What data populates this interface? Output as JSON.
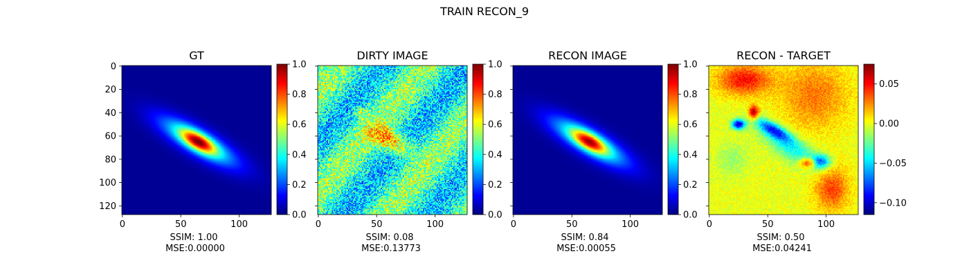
{
  "figure": {
    "title": "TRAIN RECON_9"
  },
  "chart_data": [
    {
      "type": "heatmap",
      "title": "GT",
      "colormap": "jet",
      "colorbar": {
        "range": [
          0.0,
          1.0
        ],
        "ticks": [
          "0.0",
          "0.2",
          "0.4",
          "0.6",
          "0.8",
          "1.0"
        ]
      },
      "xticks": [
        "0",
        "50",
        "100"
      ],
      "yticks": [
        "0",
        "20",
        "40",
        "60",
        "80",
        "100",
        "120"
      ],
      "extent": [
        0,
        128
      ],
      "caption": {
        "ssim": "SSIM: 1.00",
        "mse": "MSE:0.00000"
      },
      "blob": {
        "center": [
          65,
          65
        ],
        "angle_deg": -30,
        "peak": 1.0,
        "noise": 0.0,
        "background": 0.02
      }
    },
    {
      "type": "heatmap",
      "title": "DIRTY IMAGE",
      "colormap": "jet",
      "colorbar": {
        "range": [
          0.0,
          1.0
        ],
        "ticks": [
          "0.0",
          "0.2",
          "0.4",
          "0.6",
          "0.8",
          "1.0"
        ]
      },
      "xticks": [
        "0",
        "50",
        "100"
      ],
      "yticks": [],
      "extent": [
        0,
        128
      ],
      "caption": {
        "ssim": "SSIM: 0.08",
        "mse": "MSE:0.13773"
      },
      "blob": {
        "center": [
          62,
          64
        ],
        "angle_deg": -30,
        "peak": 0.75,
        "noise": 0.12,
        "background": 0.4
      }
    },
    {
      "type": "heatmap",
      "title": "RECON IMAGE",
      "colormap": "jet",
      "colorbar": {
        "range": [
          0.0,
          1.0
        ],
        "ticks": [
          "0.0",
          "0.2",
          "0.4",
          "0.6",
          "0.8",
          "1.0"
        ]
      },
      "xticks": [
        "0",
        "50",
        "100"
      ],
      "yticks": [],
      "extent": [
        0,
        128
      ],
      "caption": {
        "ssim": "SSIM: 0.84",
        "mse": "MSE:0.00055"
      },
      "blob": {
        "center": [
          65,
          65
        ],
        "angle_deg": -30,
        "peak": 0.95,
        "noise": 0.0,
        "background": 0.02
      }
    },
    {
      "type": "heatmap",
      "title": "RECON - TARGET",
      "colormap": "jet",
      "colorbar": {
        "range": [
          -0.115,
          0.075
        ],
        "ticks": [
          "0.05",
          "0.00",
          "−0.05",
          "−0.10"
        ],
        "tick_values": [
          0.05,
          0.0,
          -0.05,
          -0.1
        ]
      },
      "xticks": [
        "0",
        "50",
        "100"
      ],
      "yticks": [],
      "extent": [
        0,
        128
      ],
      "caption": {
        "ssim": "SSIM: 0.50",
        "mse": "MSE:0.04241"
      },
      "blob": {
        "center": [
          65,
          65
        ],
        "angle_deg": -30,
        "peak": 0.0,
        "noise": 0.01,
        "background": 0.0
      }
    }
  ]
}
